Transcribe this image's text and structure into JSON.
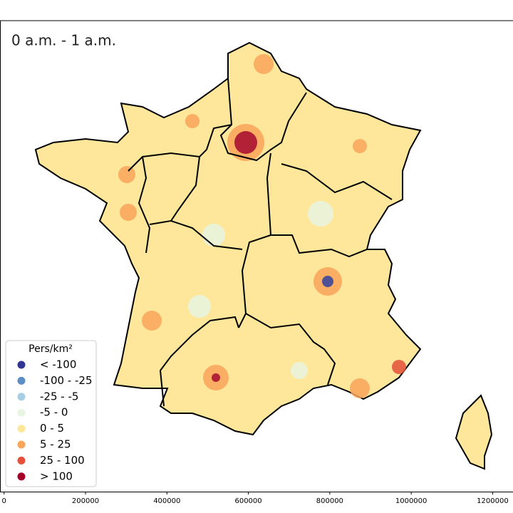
{
  "map": {
    "title": "0 a.m. - 1 a.m.",
    "legend": {
      "title": "Pers/km²",
      "items": [
        {
          "label": "< -100",
          "color": "#313695"
        },
        {
          "label": "-100 - -25",
          "color": "#5a8ec4"
        },
        {
          "label": "-25 - -5",
          "color": "#a6cfe5"
        },
        {
          "label": "-5 - 0",
          "color": "#e8f5e0"
        },
        {
          "label": "0 - 5",
          "color": "#fee79a"
        },
        {
          "label": "5 - 25",
          "color": "#f9a55a"
        },
        {
          "label": "25 - 100",
          "color": "#e4503a"
        },
        {
          "label": "> 100",
          "color": "#a50026"
        }
      ]
    },
    "xlim": [
      -10000,
      1250000
    ],
    "xticks": [
      0,
      200000,
      400000,
      600000,
      800000,
      1000000,
      1200000
    ]
  }
}
